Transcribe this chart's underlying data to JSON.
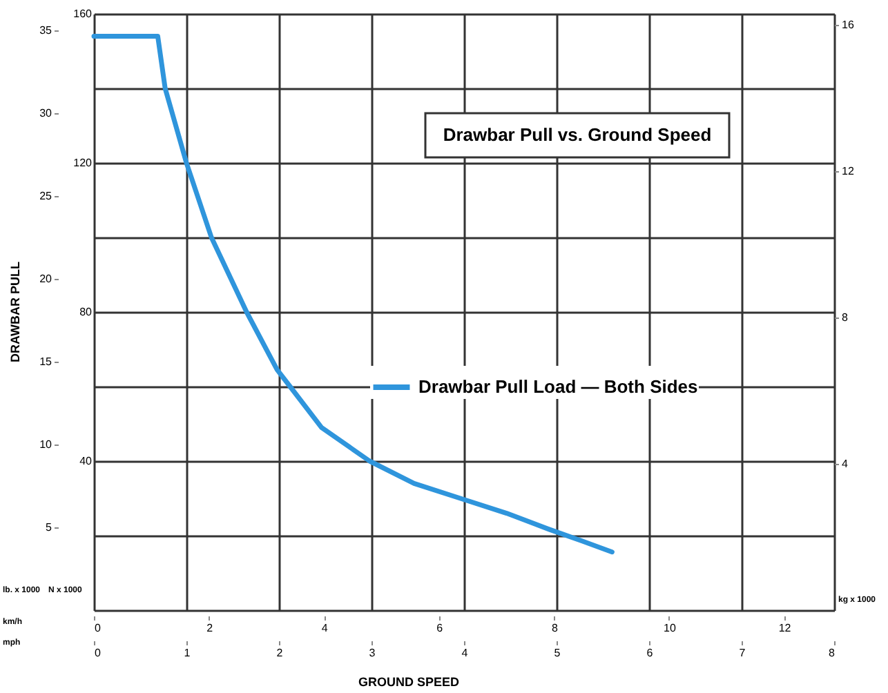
{
  "chart_data": {
    "type": "line",
    "title": "Drawbar Pull vs. Ground Speed",
    "xlabel": "GROUND SPEED",
    "ylabel": "DRAWBAR PULL",
    "x": [
      0,
      0.69,
      0.77,
      1.0,
      1.27,
      1.65,
      1.98,
      2.12,
      2.46,
      2.98,
      3.46,
      3.96,
      4.46,
      4.93,
      5.27,
      5.6
    ],
    "series": [
      {
        "name": "Drawbar Pull Load — Both Sides",
        "color": "#2f95dc",
        "values": [
          154,
          154,
          140,
          120,
          100,
          80,
          64.5,
          60,
          49,
          40,
          34,
          30,
          26,
          21.6,
          18.6,
          15.6
        ]
      }
    ],
    "xlim": [
      0,
      8
    ],
    "xticks": [
      0,
      1,
      2,
      3,
      4,
      5,
      6,
      7,
      8
    ],
    "ylim": [
      0,
      160
    ],
    "yticks": [
      {
        "value": 0,
        "label": null
      },
      {
        "value": 20,
        "label": null
      },
      40,
      {
        "value": 60,
        "label": null
      },
      80,
      {
        "value": 100,
        "label": null
      },
      120,
      {
        "value": 140,
        "label": null
      },
      160
    ],
    "y2lim": [
      0,
      16.3
    ],
    "y2ticks": [
      4,
      8,
      12,
      16
    ],
    "y3lim": [
      0,
      36
    ],
    "y3ticks": [
      5,
      10,
      15,
      20,
      25,
      30,
      35
    ],
    "x2lim": [
      0,
      12.87
    ],
    "x2ticks": [
      0,
      2,
      4,
      6,
      8,
      10,
      12
    ],
    "grid": true,
    "legend": "right",
    "annotations": [
      "lb. x 1000",
      "N x 1000",
      "kg x 1000",
      "km/h",
      "mph"
    ]
  }
}
